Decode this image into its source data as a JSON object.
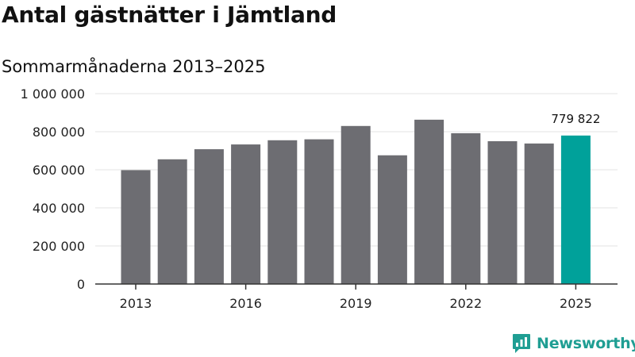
{
  "title": "Antal gästnätter i Jämtland",
  "subtitle": "Sommarmånaderna 2013–2025",
  "brand": {
    "name": "Newsworthy",
    "icon": "newsworthy-logo-icon",
    "color": "#1f9e93"
  },
  "colors": {
    "bar": "#6d6d72",
    "highlight": "#00a19a",
    "grid": "#e3e3e3",
    "axis": "#333333"
  },
  "chart_data": {
    "type": "bar",
    "categories": [
      "2013",
      "2014",
      "2015",
      "2016",
      "2017",
      "2018",
      "2019",
      "2020",
      "2021",
      "2022",
      "2023",
      "2024",
      "2025"
    ],
    "values": [
      598000,
      655000,
      708000,
      733000,
      755000,
      760000,
      830000,
      676000,
      863000,
      792000,
      750000,
      738000,
      779822
    ],
    "highlight_index": 12,
    "data_label": {
      "index": 12,
      "text": "779 822"
    },
    "ylim": [
      0,
      1000000
    ],
    "yticks": [
      0,
      200000,
      400000,
      600000,
      800000,
      1000000
    ],
    "ytick_labels": [
      "0",
      "200 000",
      "400 000",
      "600 000",
      "800 000",
      "1 000 000"
    ],
    "xtick_labels": [
      "2013",
      "2016",
      "2019",
      "2022",
      "2025"
    ],
    "xtick_indices": [
      0,
      3,
      6,
      9,
      12
    ],
    "grid": true,
    "legend": false
  }
}
